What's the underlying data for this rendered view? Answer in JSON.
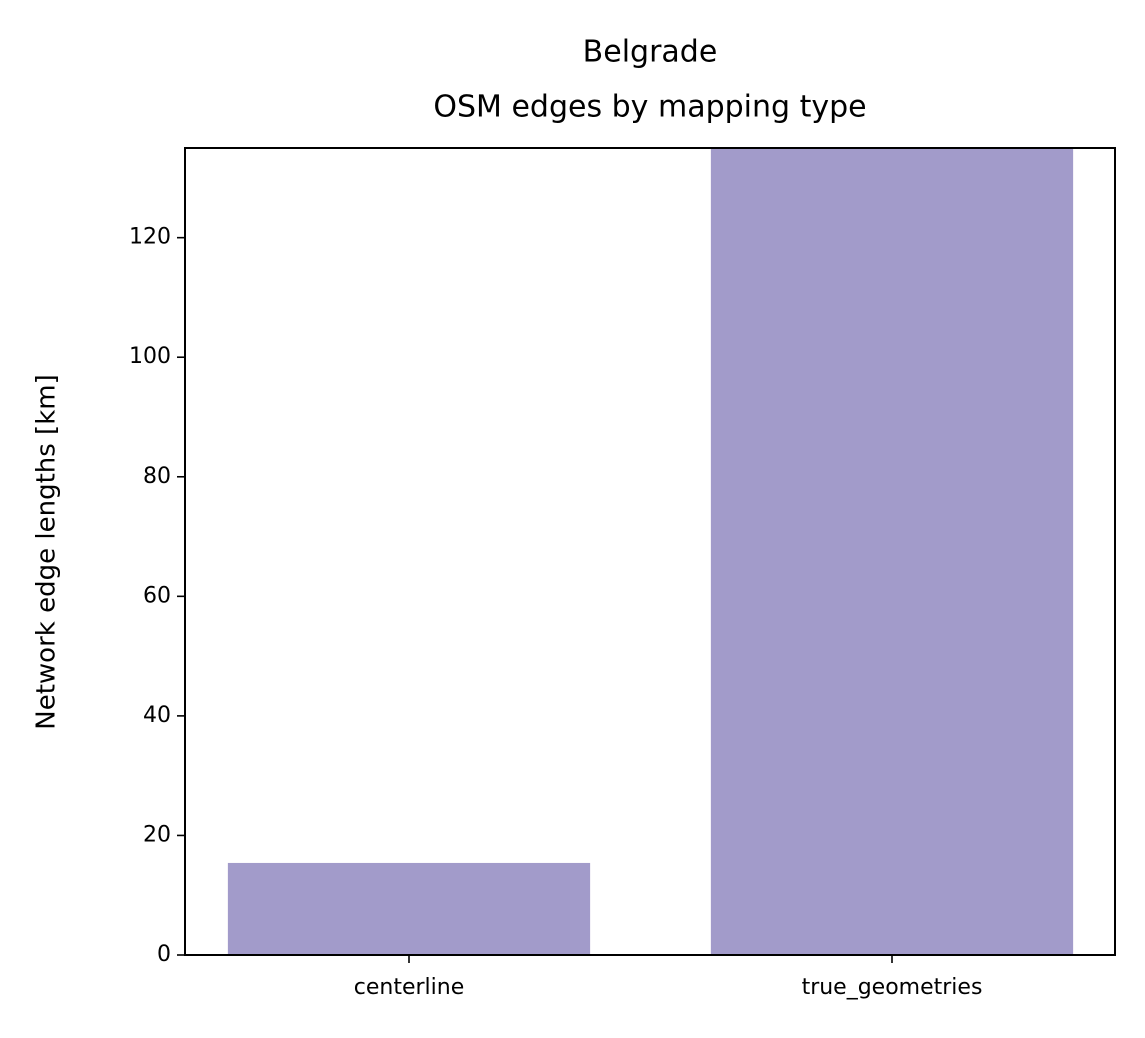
{
  "chart_data": {
    "type": "bar",
    "title": [
      "Belgrade",
      "OSM edges by mapping type"
    ],
    "ylabel": "Network edge lengths [km]",
    "categories": [
      "centerline",
      "true_geometries"
    ],
    "values": [
      15.4,
      135
    ],
    "color": "#a29bca",
    "ylim": [
      0,
      135
    ],
    "yticks": [
      0,
      20,
      40,
      60,
      80,
      100,
      120
    ]
  }
}
